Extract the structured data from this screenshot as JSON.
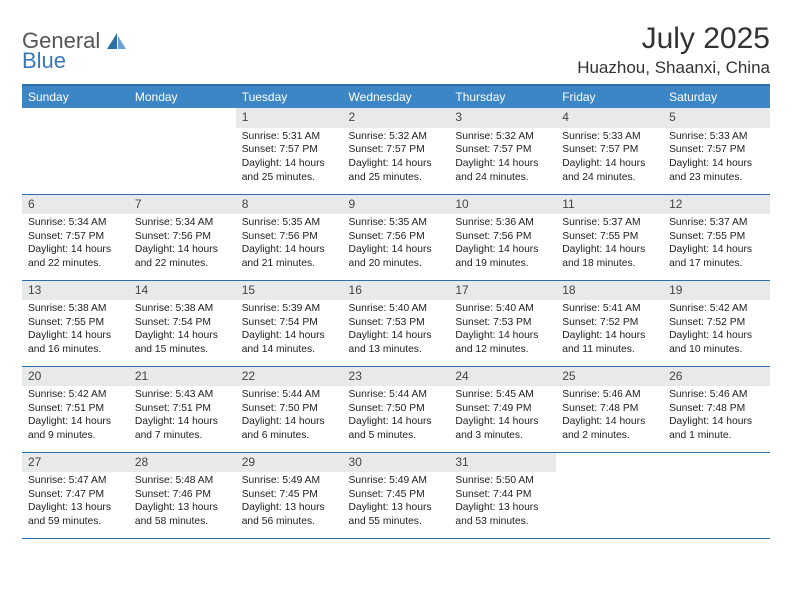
{
  "logo": {
    "text1": "General",
    "text2": "Blue"
  },
  "title": "July 2025",
  "location": "Huazhou, Shaanxi, China",
  "colors": {
    "header_bg": "#3d86c6",
    "header_fg": "#ffffff",
    "rule": "#2f6fa8",
    "daynum_bg": "#e8e9ea",
    "logo_gray": "#555555",
    "logo_blue": "#3a78b8"
  },
  "fonts": {
    "title_size": 30,
    "location_size": 17,
    "weekday_size": 12,
    "daynum_size": 12,
    "body_size": 10.3
  },
  "weekdays": [
    "Sunday",
    "Monday",
    "Tuesday",
    "Wednesday",
    "Thursday",
    "Friday",
    "Saturday"
  ],
  "grid": [
    [
      null,
      null,
      {
        "n": "1",
        "sr": "Sunrise: 5:31 AM",
        "ss": "Sunset: 7:57 PM",
        "d1": "Daylight: 14 hours",
        "d2": "and 25 minutes."
      },
      {
        "n": "2",
        "sr": "Sunrise: 5:32 AM",
        "ss": "Sunset: 7:57 PM",
        "d1": "Daylight: 14 hours",
        "d2": "and 25 minutes."
      },
      {
        "n": "3",
        "sr": "Sunrise: 5:32 AM",
        "ss": "Sunset: 7:57 PM",
        "d1": "Daylight: 14 hours",
        "d2": "and 24 minutes."
      },
      {
        "n": "4",
        "sr": "Sunrise: 5:33 AM",
        "ss": "Sunset: 7:57 PM",
        "d1": "Daylight: 14 hours",
        "d2": "and 24 minutes."
      },
      {
        "n": "5",
        "sr": "Sunrise: 5:33 AM",
        "ss": "Sunset: 7:57 PM",
        "d1": "Daylight: 14 hours",
        "d2": "and 23 minutes."
      }
    ],
    [
      {
        "n": "6",
        "sr": "Sunrise: 5:34 AM",
        "ss": "Sunset: 7:57 PM",
        "d1": "Daylight: 14 hours",
        "d2": "and 22 minutes."
      },
      {
        "n": "7",
        "sr": "Sunrise: 5:34 AM",
        "ss": "Sunset: 7:56 PM",
        "d1": "Daylight: 14 hours",
        "d2": "and 22 minutes."
      },
      {
        "n": "8",
        "sr": "Sunrise: 5:35 AM",
        "ss": "Sunset: 7:56 PM",
        "d1": "Daylight: 14 hours",
        "d2": "and 21 minutes."
      },
      {
        "n": "9",
        "sr": "Sunrise: 5:35 AM",
        "ss": "Sunset: 7:56 PM",
        "d1": "Daylight: 14 hours",
        "d2": "and 20 minutes."
      },
      {
        "n": "10",
        "sr": "Sunrise: 5:36 AM",
        "ss": "Sunset: 7:56 PM",
        "d1": "Daylight: 14 hours",
        "d2": "and 19 minutes."
      },
      {
        "n": "11",
        "sr": "Sunrise: 5:37 AM",
        "ss": "Sunset: 7:55 PM",
        "d1": "Daylight: 14 hours",
        "d2": "and 18 minutes."
      },
      {
        "n": "12",
        "sr": "Sunrise: 5:37 AM",
        "ss": "Sunset: 7:55 PM",
        "d1": "Daylight: 14 hours",
        "d2": "and 17 minutes."
      }
    ],
    [
      {
        "n": "13",
        "sr": "Sunrise: 5:38 AM",
        "ss": "Sunset: 7:55 PM",
        "d1": "Daylight: 14 hours",
        "d2": "and 16 minutes."
      },
      {
        "n": "14",
        "sr": "Sunrise: 5:38 AM",
        "ss": "Sunset: 7:54 PM",
        "d1": "Daylight: 14 hours",
        "d2": "and 15 minutes."
      },
      {
        "n": "15",
        "sr": "Sunrise: 5:39 AM",
        "ss": "Sunset: 7:54 PM",
        "d1": "Daylight: 14 hours",
        "d2": "and 14 minutes."
      },
      {
        "n": "16",
        "sr": "Sunrise: 5:40 AM",
        "ss": "Sunset: 7:53 PM",
        "d1": "Daylight: 14 hours",
        "d2": "and 13 minutes."
      },
      {
        "n": "17",
        "sr": "Sunrise: 5:40 AM",
        "ss": "Sunset: 7:53 PM",
        "d1": "Daylight: 14 hours",
        "d2": "and 12 minutes."
      },
      {
        "n": "18",
        "sr": "Sunrise: 5:41 AM",
        "ss": "Sunset: 7:52 PM",
        "d1": "Daylight: 14 hours",
        "d2": "and 11 minutes."
      },
      {
        "n": "19",
        "sr": "Sunrise: 5:42 AM",
        "ss": "Sunset: 7:52 PM",
        "d1": "Daylight: 14 hours",
        "d2": "and 10 minutes."
      }
    ],
    [
      {
        "n": "20",
        "sr": "Sunrise: 5:42 AM",
        "ss": "Sunset: 7:51 PM",
        "d1": "Daylight: 14 hours",
        "d2": "and 9 minutes."
      },
      {
        "n": "21",
        "sr": "Sunrise: 5:43 AM",
        "ss": "Sunset: 7:51 PM",
        "d1": "Daylight: 14 hours",
        "d2": "and 7 minutes."
      },
      {
        "n": "22",
        "sr": "Sunrise: 5:44 AM",
        "ss": "Sunset: 7:50 PM",
        "d1": "Daylight: 14 hours",
        "d2": "and 6 minutes."
      },
      {
        "n": "23",
        "sr": "Sunrise: 5:44 AM",
        "ss": "Sunset: 7:50 PM",
        "d1": "Daylight: 14 hours",
        "d2": "and 5 minutes."
      },
      {
        "n": "24",
        "sr": "Sunrise: 5:45 AM",
        "ss": "Sunset: 7:49 PM",
        "d1": "Daylight: 14 hours",
        "d2": "and 3 minutes."
      },
      {
        "n": "25",
        "sr": "Sunrise: 5:46 AM",
        "ss": "Sunset: 7:48 PM",
        "d1": "Daylight: 14 hours",
        "d2": "and 2 minutes."
      },
      {
        "n": "26",
        "sr": "Sunrise: 5:46 AM",
        "ss": "Sunset: 7:48 PM",
        "d1": "Daylight: 14 hours",
        "d2": "and 1 minute."
      }
    ],
    [
      {
        "n": "27",
        "sr": "Sunrise: 5:47 AM",
        "ss": "Sunset: 7:47 PM",
        "d1": "Daylight: 13 hours",
        "d2": "and 59 minutes."
      },
      {
        "n": "28",
        "sr": "Sunrise: 5:48 AM",
        "ss": "Sunset: 7:46 PM",
        "d1": "Daylight: 13 hours",
        "d2": "and 58 minutes."
      },
      {
        "n": "29",
        "sr": "Sunrise: 5:49 AM",
        "ss": "Sunset: 7:45 PM",
        "d1": "Daylight: 13 hours",
        "d2": "and 56 minutes."
      },
      {
        "n": "30",
        "sr": "Sunrise: 5:49 AM",
        "ss": "Sunset: 7:45 PM",
        "d1": "Daylight: 13 hours",
        "d2": "and 55 minutes."
      },
      {
        "n": "31",
        "sr": "Sunrise: 5:50 AM",
        "ss": "Sunset: 7:44 PM",
        "d1": "Daylight: 13 hours",
        "d2": "and 53 minutes."
      },
      null,
      null
    ]
  ]
}
